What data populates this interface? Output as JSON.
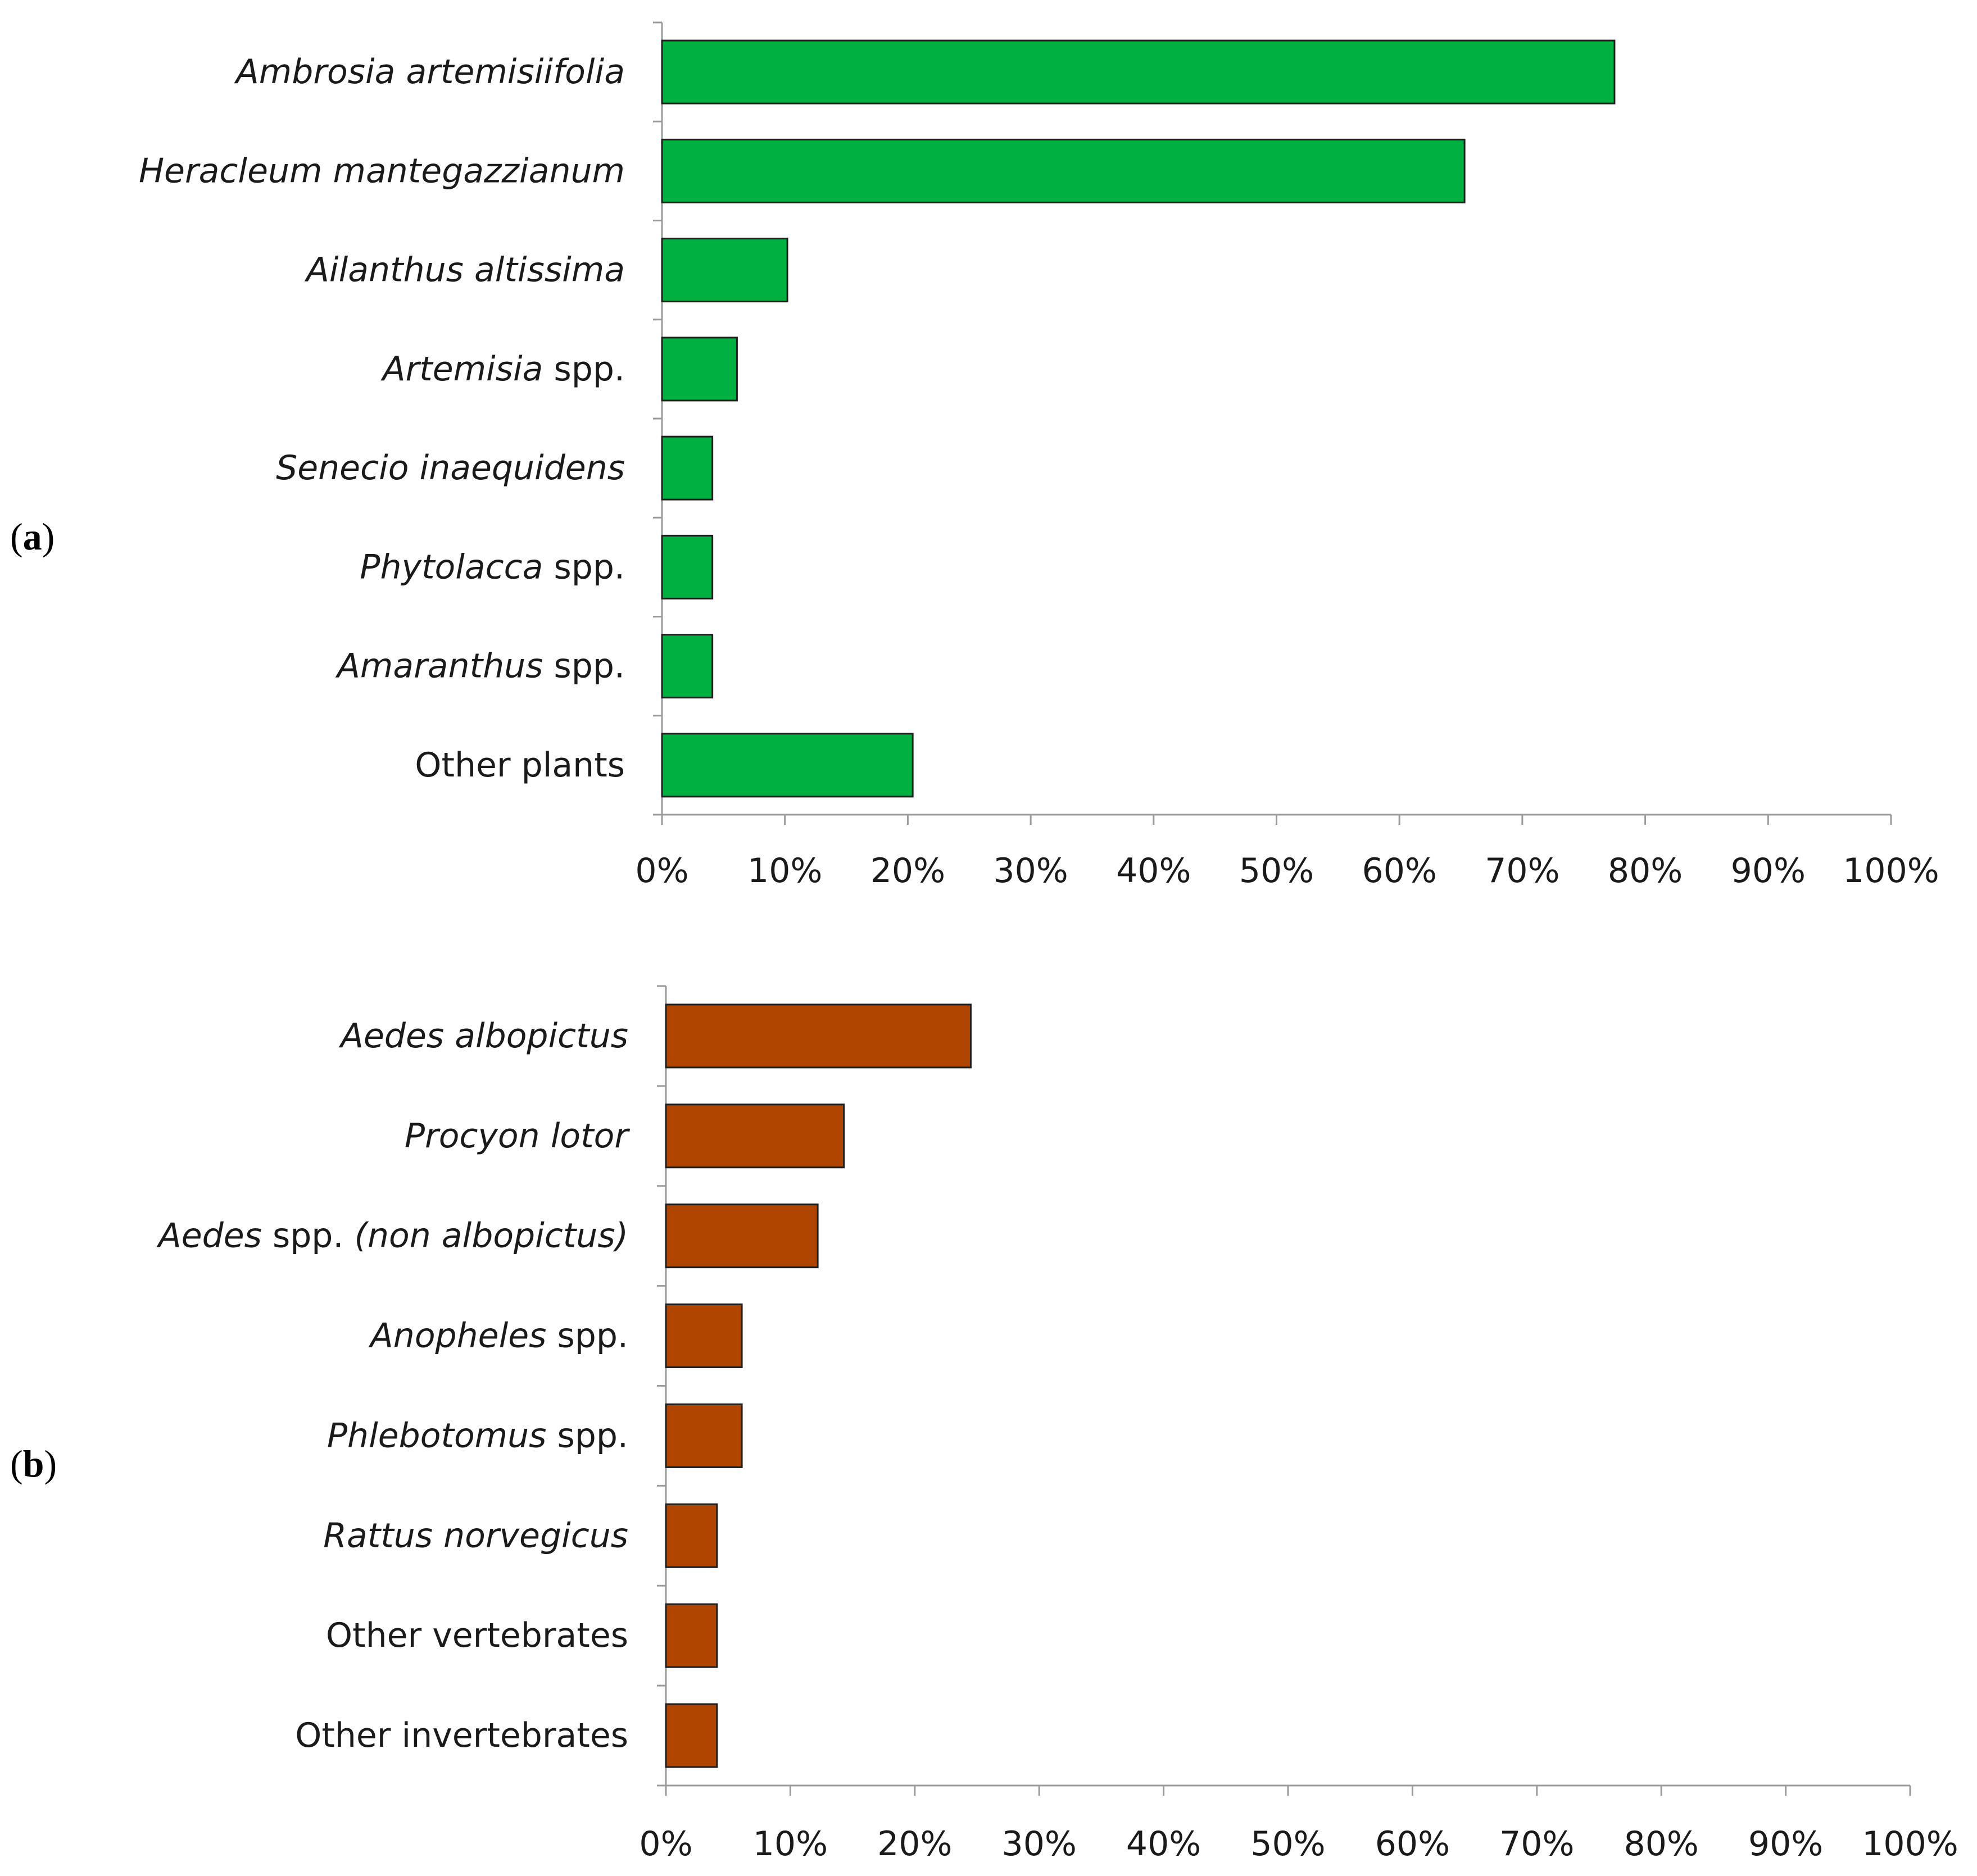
{
  "chart_data": [
    {
      "panel": "(a)",
      "panel_letter": "a",
      "type": "bar",
      "orientation": "horizontal",
      "color": "#00b040",
      "categories": [
        {
          "parts": [
            {
              "text": "Ambrosia artemisiifolia",
              "italic": true
            }
          ]
        },
        {
          "parts": [
            {
              "text": "Heracleum mantegazzianum",
              "italic": true
            }
          ]
        },
        {
          "parts": [
            {
              "text": "Ailanthus altissima",
              "italic": true
            }
          ]
        },
        {
          "parts": [
            {
              "text": "Artemisia",
              "italic": true
            },
            {
              "text": " spp.",
              "italic": false
            }
          ]
        },
        {
          "parts": [
            {
              "text": "Senecio inaequidens",
              "italic": true
            }
          ]
        },
        {
          "parts": [
            {
              "text": "Phytolacca",
              "italic": true
            },
            {
              "text": " spp.",
              "italic": false
            }
          ]
        },
        {
          "parts": [
            {
              "text": "Amaranthus",
              "italic": true
            },
            {
              "text": " spp.",
              "italic": false
            }
          ]
        },
        {
          "parts": [
            {
              "text": "Other plants",
              "italic": false
            }
          ]
        }
      ],
      "values": [
        77.5,
        65.3,
        10.2,
        6.1,
        4.1,
        4.1,
        4.1,
        20.4
      ],
      "xlim": [
        0,
        100
      ],
      "ticks": [
        "0%",
        "10%",
        "20%",
        "30%",
        "40%",
        "50%",
        "60%",
        "70%",
        "80%",
        "90%",
        "100%"
      ],
      "grid": false,
      "title": "",
      "xlabel": "",
      "ylabel": ""
    },
    {
      "panel": "(b)",
      "panel_letter": "b",
      "type": "bar",
      "orientation": "horizontal",
      "color": "#b04500",
      "categories": [
        {
          "parts": [
            {
              "text": "Aedes albopictus",
              "italic": true
            }
          ]
        },
        {
          "parts": [
            {
              "text": "Procyon lotor",
              "italic": true
            }
          ]
        },
        {
          "parts": [
            {
              "text": "Aedes",
              "italic": true
            },
            {
              "text": " spp. ",
              "italic": false
            },
            {
              "text": "(non albopictus)",
              "italic": true
            }
          ]
        },
        {
          "parts": [
            {
              "text": "Anopheles",
              "italic": true
            },
            {
              "text": " spp.",
              "italic": false
            }
          ]
        },
        {
          "parts": [
            {
              "text": "Phlebotomus",
              "italic": true
            },
            {
              "text": "  spp.",
              "italic": false
            }
          ]
        },
        {
          "parts": [
            {
              "text": "Rattus norvegicus",
              "italic": true
            }
          ]
        },
        {
          "parts": [
            {
              "text": "Other vertebrates",
              "italic": false
            }
          ]
        },
        {
          "parts": [
            {
              "text": "Other invertebrates",
              "italic": false
            }
          ]
        }
      ],
      "values": [
        24.5,
        14.3,
        12.2,
        6.1,
        6.1,
        4.1,
        4.1,
        4.1
      ],
      "xlim": [
        0,
        100
      ],
      "ticks": [
        "0%",
        "10%",
        "20%",
        "30%",
        "40%",
        "50%",
        "60%",
        "70%",
        "80%",
        "90%",
        "100%"
      ],
      "grid": false,
      "title": "",
      "xlabel": "",
      "ylabel": ""
    }
  ]
}
